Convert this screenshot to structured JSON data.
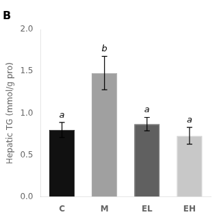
{
  "chart_data": {
    "type": "bar",
    "title": "B",
    "categories": [
      "C",
      "M",
      "EL",
      "EH"
    ],
    "values": [
      0.8,
      1.48,
      0.87,
      0.73
    ],
    "errors": [
      0.09,
      0.2,
      0.08,
      0.1
    ],
    "colors": [
      "#111111",
      "#a0a0a0",
      "#606060",
      "#c8c8c8"
    ],
    "annotations": [
      "a",
      "b",
      "a",
      "a"
    ],
    "ylabel": "Hepatic TG (mmol/g pro)",
    "ylim": [
      0.0,
      2.0
    ],
    "yticks": [
      {
        "value": 0,
        "label": "0.0"
      },
      0.5,
      {
        "value": 1,
        "label": "1.0"
      },
      1.5,
      {
        "value": 2,
        "label": "2.0"
      }
    ],
    "grid": false
  }
}
